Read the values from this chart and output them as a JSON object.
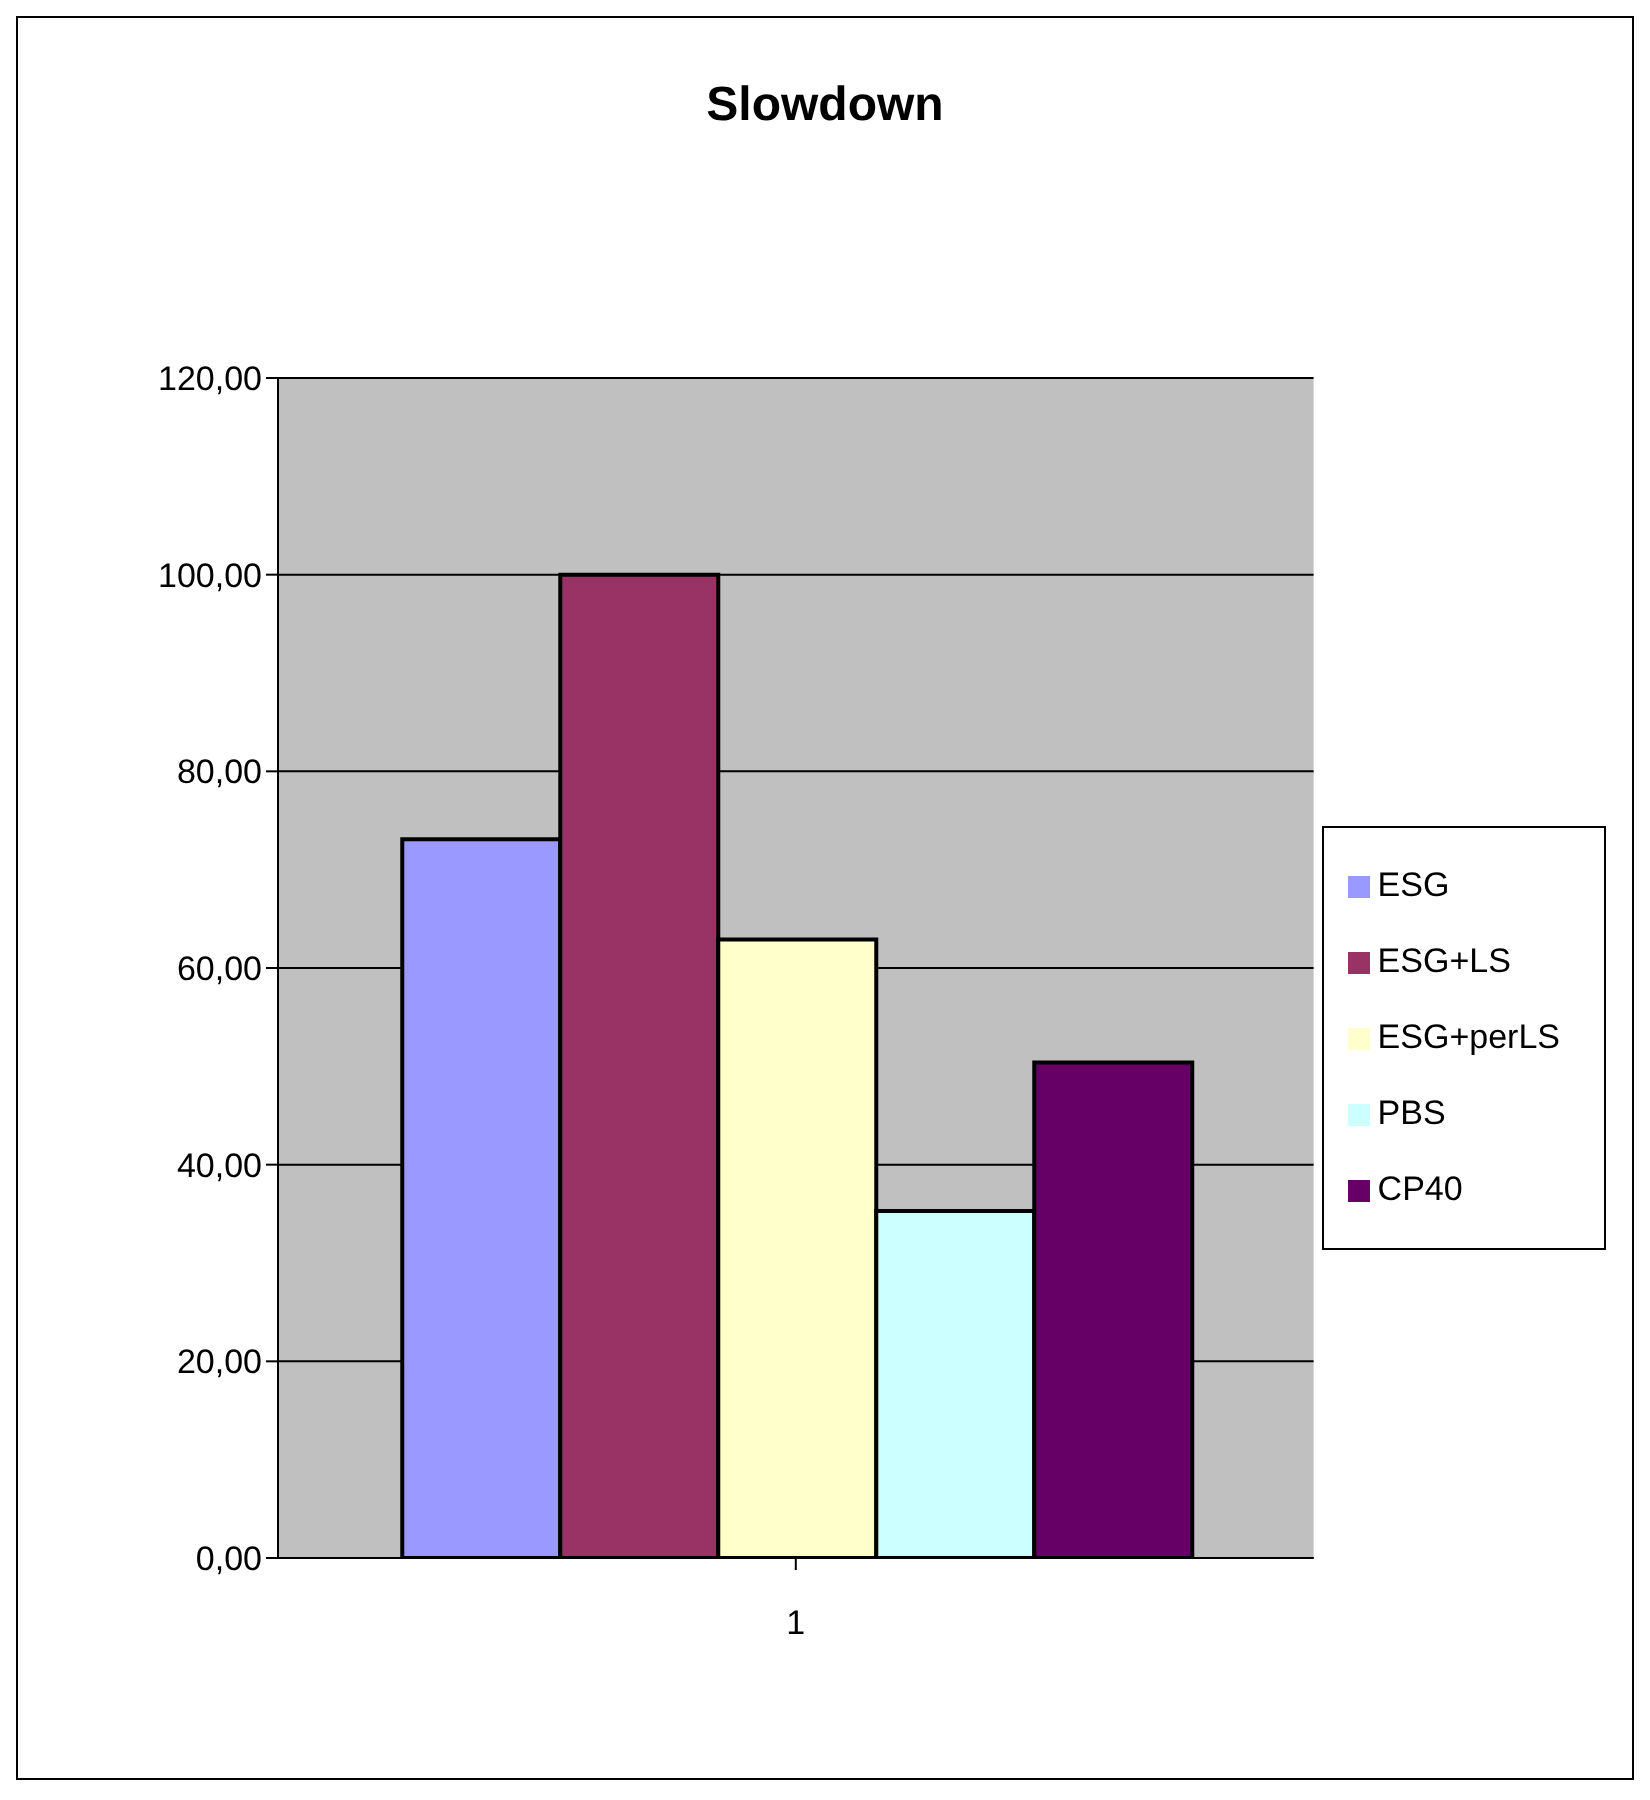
{
  "chart_data": {
    "type": "bar",
    "title": "Slowdown",
    "categories": [
      "1"
    ],
    "series": [
      {
        "name": "ESG",
        "color": "#9999ff",
        "values": [
          73.1
        ]
      },
      {
        "name": "ESG+LS",
        "color": "#993366",
        "values": [
          100
        ]
      },
      {
        "name": "ESG+perLS",
        "color": "#ffffcc",
        "values": [
          62.9
        ]
      },
      {
        "name": "PBS",
        "color": "#ccffff",
        "values": [
          35.3
        ]
      },
      {
        "name": "CP40",
        "color": "#660066",
        "values": [
          50.4
        ]
      }
    ],
    "ylim": [
      0,
      120
    ],
    "yticks": [
      {
        "value": 0,
        "label": "0,00"
      },
      {
        "value": 20,
        "label": "20,00"
      },
      {
        "value": 40,
        "label": "40,00"
      },
      {
        "value": 60,
        "label": "60,00"
      },
      {
        "value": 80,
        "label": "80,00"
      },
      {
        "value": 100,
        "label": "100,00"
      },
      {
        "value": 120,
        "label": "120,00"
      }
    ],
    "grid": "y",
    "legend": "right"
  }
}
